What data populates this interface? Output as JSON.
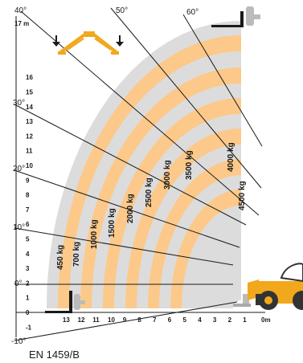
{
  "standard": "EN 1459/B",
  "y_unit_label": "17 m",
  "x_unit_label": "0m",
  "y_ticks": [
    "16",
    "15",
    "14",
    "13",
    "12",
    "11",
    "10",
    "9",
    "8",
    "7",
    "6",
    "5",
    "4",
    "3",
    "2",
    "1",
    "0",
    "-1"
  ],
  "x_ticks": [
    "13",
    "12",
    "11",
    "10",
    "9",
    "8",
    "7",
    "6",
    "5",
    "4",
    "3",
    "2",
    "1"
  ],
  "angles": [
    {
      "label": "60°",
      "deg": 60
    },
    {
      "label": "50°",
      "deg": 50
    },
    {
      "label": "40°",
      "deg": 40
    },
    {
      "label": "30°",
      "deg": 30
    },
    {
      "label": "20°",
      "deg": 20
    },
    {
      "label": "10°",
      "deg": 10
    },
    {
      "label": "0°",
      "deg": 0
    },
    {
      "label": "-10°",
      "deg": -10
    }
  ],
  "load_zones": [
    "450 kg",
    "700 kg",
    "1000 kg",
    "1500 kg",
    "2000 kg",
    "2500 kg",
    "3000 kg",
    "3500 kg",
    "4000 kg",
    "4500 kg"
  ],
  "colors": {
    "band_orange": "#fcc98a",
    "band_gray": "#dcdcdc",
    "line": "#1a1a1a",
    "machine_body": "#f2a81d",
    "machine_dark": "#333333"
  },
  "icons": [
    "fork-pallet-icon",
    "jib-attachment-icon",
    "telehandler-icon"
  ]
}
